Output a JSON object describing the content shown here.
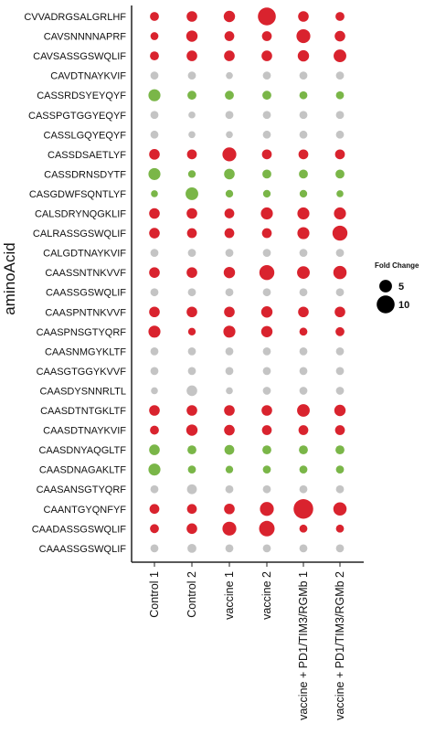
{
  "chart_data": {
    "type": "scatter",
    "ylabel": "aminoAcid",
    "xlabel": "",
    "categories_x": [
      "Control 1",
      "Control  2",
      "vaccine 1",
      "vaccine 2",
      "vaccine + PD1/TIM3/RGMb 1",
      "vaccine + PD1/TIM3/RGMb 2"
    ],
    "categories_y": [
      "CVVADRGSALGRLHF",
      "CAVSNNNNAPRF",
      "CAVSASSGSWQLIF",
      "CAVDTNAYKVIF",
      "CASSRDSYEYQYF",
      "CASSPGTGGYEQYF",
      "CASSLGQYEQYF",
      "CASSDSAETLYF",
      "CASSDRNSDYTF",
      "CASGDWFSQNTLYF",
      "CALSDRYNQGKLIF",
      "CALRASSGSWQLIF",
      "CALGDTNAYKVIF",
      "CAASSNTNKVVF",
      "CAASSGSWQLIF",
      "CAASPNTNKVVF",
      "CAASPNSGTYQRF",
      "CAASNMGYKLTF",
      "CAASGTGGYKVVF",
      "CAASDYSNNRLTL",
      "CAASDTNTGKLTF",
      "CAASDTNAYKVIF",
      "CAASDNYAQGLTF",
      "CAASDNAGAKLTF",
      "CAASANSGTYQRF",
      "CAANTGYQNFYF",
      "CAADASSGSWQLIF",
      "CAAASSGSWQLIF"
    ],
    "colors": {
      "up": "#d9232e",
      "down": "#7ab648",
      "none": "#c4c4c4"
    },
    "fold_change": [
      [
        2.5,
        3.5,
        4.0,
        10.0,
        3.5,
        2.5
      ],
      [
        2.0,
        4.0,
        3.0,
        3.0,
        6.0,
        3.5
      ],
      [
        2.5,
        3.5,
        3.5,
        3.5,
        4.0,
        5.0
      ],
      [
        2.0,
        2.0,
        1.5,
        2.0,
        2.0,
        2.0
      ],
      [
        4.5,
        2.5,
        2.5,
        2.5,
        2.0,
        2.0
      ],
      [
        2.0,
        1.5,
        2.0,
        2.0,
        2.0,
        2.0
      ],
      [
        2.0,
        1.5,
        1.5,
        2.0,
        2.0,
        2.0
      ],
      [
        3.5,
        3.0,
        6.0,
        3.0,
        3.0,
        3.0
      ],
      [
        4.5,
        1.8,
        3.5,
        2.5,
        2.5,
        2.5
      ],
      [
        1.5,
        5.0,
        1.8,
        1.8,
        1.8,
        1.5
      ],
      [
        3.5,
        3.5,
        3.0,
        4.5,
        4.5,
        4.5
      ],
      [
        3.5,
        3.0,
        3.0,
        3.0,
        4.5,
        7.0
      ],
      [
        2.0,
        2.0,
        2.0,
        2.0,
        2.0,
        2.0
      ],
      [
        3.5,
        3.5,
        4.0,
        7.0,
        5.0,
        5.5
      ],
      [
        2.0,
        2.0,
        2.0,
        2.0,
        2.0,
        2.0
      ],
      [
        3.5,
        3.5,
        3.5,
        4.0,
        3.5,
        3.5
      ],
      [
        4.5,
        1.8,
        4.5,
        4.0,
        2.0,
        2.5
      ],
      [
        2.0,
        2.0,
        2.0,
        2.0,
        2.0,
        2.0
      ],
      [
        2.0,
        2.0,
        2.0,
        2.0,
        2.0,
        2.0
      ],
      [
        1.5,
        3.5,
        1.5,
        2.0,
        2.0,
        2.0
      ],
      [
        3.5,
        3.5,
        3.5,
        3.5,
        5.0,
        4.0
      ],
      [
        2.5,
        4.0,
        3.5,
        3.0,
        3.0,
        3.0
      ],
      [
        3.5,
        2.5,
        3.0,
        2.5,
        2.5,
        2.5
      ],
      [
        4.5,
        2.0,
        1.8,
        2.0,
        2.0,
        2.0
      ],
      [
        2.0,
        3.0,
        2.0,
        2.0,
        2.0,
        2.0
      ],
      [
        3.0,
        3.0,
        3.5,
        6.0,
        12.0,
        5.5
      ],
      [
        2.5,
        3.5,
        6.0,
        7.5,
        2.0,
        2.0
      ],
      [
        2.0,
        2.5,
        2.0,
        2.0,
        2.0,
        2.0
      ]
    ],
    "direction": [
      [
        "up",
        "up",
        "up",
        "up",
        "up",
        "up"
      ],
      [
        "up",
        "up",
        "up",
        "up",
        "up",
        "up"
      ],
      [
        "up",
        "up",
        "up",
        "up",
        "up",
        "up"
      ],
      [
        "none",
        "none",
        "none",
        "none",
        "none",
        "none"
      ],
      [
        "down",
        "down",
        "down",
        "down",
        "down",
        "down"
      ],
      [
        "none",
        "none",
        "none",
        "none",
        "none",
        "none"
      ],
      [
        "none",
        "none",
        "none",
        "none",
        "none",
        "none"
      ],
      [
        "up",
        "up",
        "up",
        "up",
        "up",
        "up"
      ],
      [
        "down",
        "down",
        "down",
        "down",
        "down",
        "down"
      ],
      [
        "down",
        "down",
        "down",
        "down",
        "down",
        "down"
      ],
      [
        "up",
        "up",
        "up",
        "up",
        "up",
        "up"
      ],
      [
        "up",
        "up",
        "up",
        "up",
        "up",
        "up"
      ],
      [
        "none",
        "none",
        "none",
        "none",
        "none",
        "none"
      ],
      [
        "up",
        "up",
        "up",
        "up",
        "up",
        "up"
      ],
      [
        "none",
        "none",
        "none",
        "none",
        "none",
        "none"
      ],
      [
        "up",
        "up",
        "up",
        "up",
        "up",
        "up"
      ],
      [
        "up",
        "up",
        "up",
        "up",
        "up",
        "up"
      ],
      [
        "none",
        "none",
        "none",
        "none",
        "none",
        "none"
      ],
      [
        "none",
        "none",
        "none",
        "none",
        "none",
        "none"
      ],
      [
        "none",
        "none",
        "none",
        "none",
        "none",
        "none"
      ],
      [
        "up",
        "up",
        "up",
        "up",
        "up",
        "up"
      ],
      [
        "up",
        "up",
        "up",
        "up",
        "up",
        "up"
      ],
      [
        "down",
        "down",
        "down",
        "down",
        "down",
        "down"
      ],
      [
        "down",
        "down",
        "down",
        "down",
        "down",
        "down"
      ],
      [
        "none",
        "none",
        "none",
        "none",
        "none",
        "none"
      ],
      [
        "up",
        "up",
        "up",
        "up",
        "up",
        "up"
      ],
      [
        "up",
        "up",
        "up",
        "up",
        "up",
        "up"
      ],
      [
        "none",
        "none",
        "none",
        "none",
        "none",
        "none"
      ]
    ],
    "legend": {
      "title": "Fold Change",
      "entries": [
        {
          "label": "5",
          "value": 5
        },
        {
          "label": "10",
          "value": 10
        }
      ]
    },
    "grid": false
  }
}
